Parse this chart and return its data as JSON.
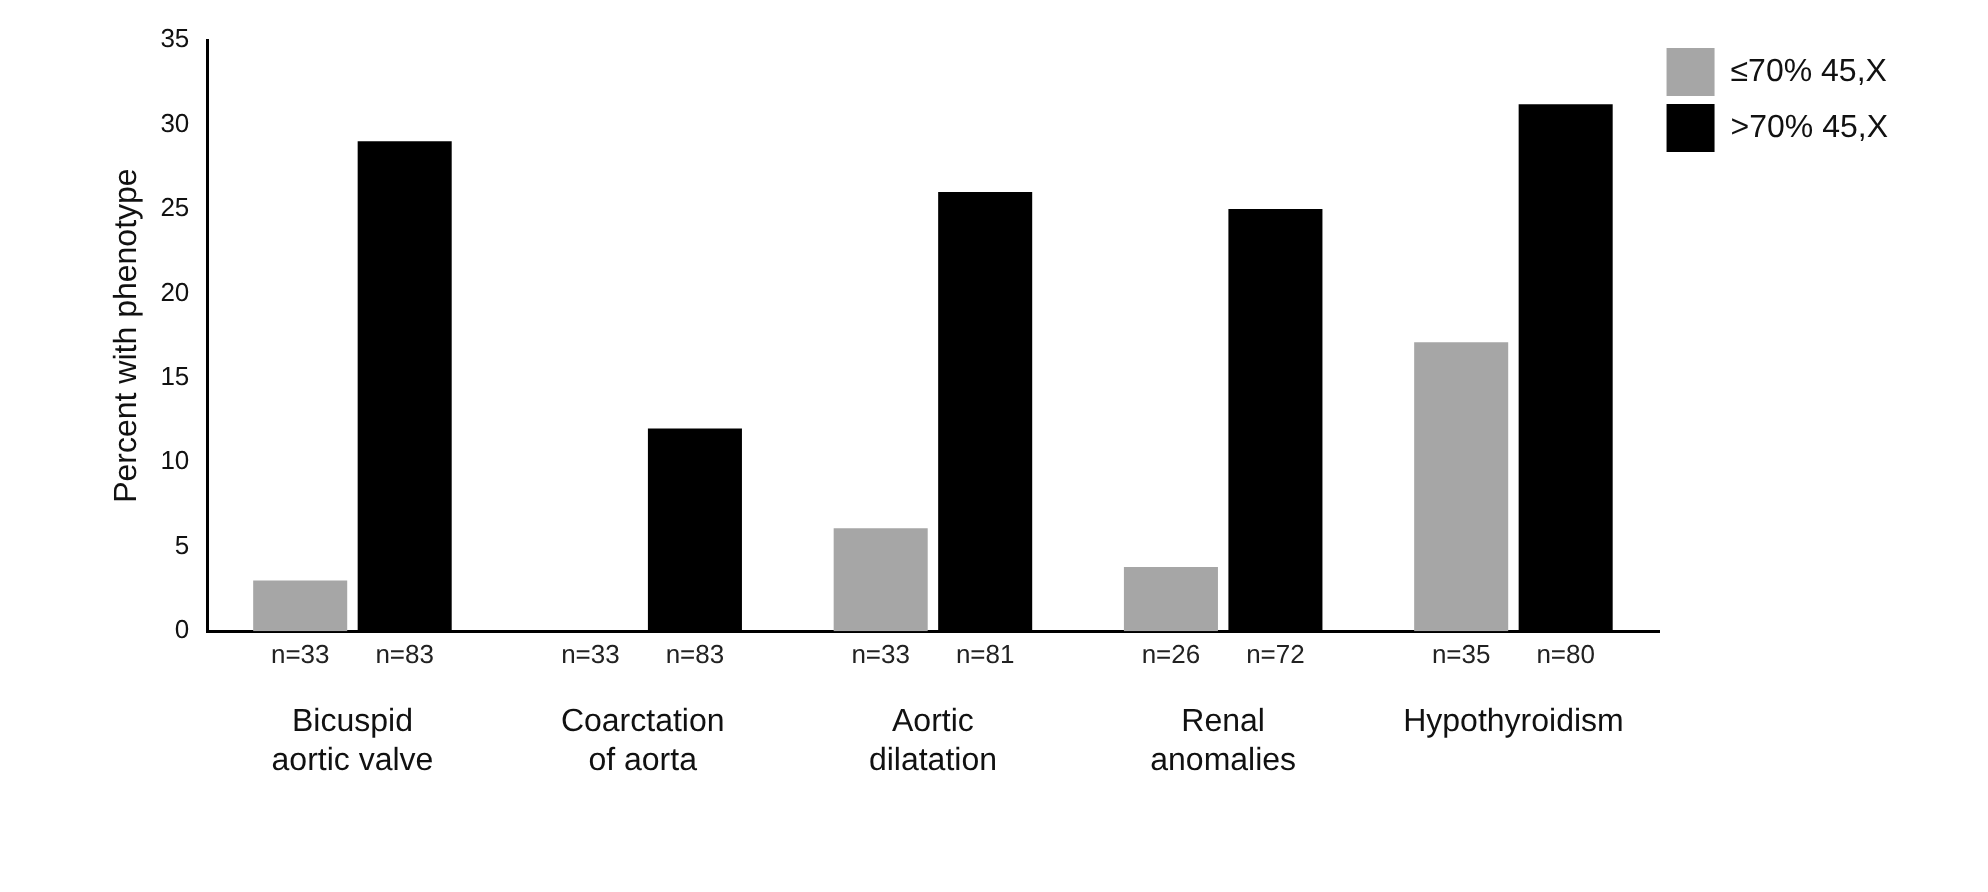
{
  "chart_data": {
    "type": "bar",
    "ylabel": "Percent with phenotype",
    "categories": [
      "Bicuspid aortic valve",
      "Coarctation of aorta",
      "Aortic dilatation",
      "Renal anomalies",
      "Hypothyroidism"
    ],
    "series": [
      {
        "name": "≤70% 45,X",
        "color": "#a6a6a6",
        "values": [
          3,
          0,
          6.1,
          3.8,
          17.1
        ]
      },
      {
        "name": ">70% 45,X",
        "color": "#000000",
        "values": [
          29,
          12,
          26,
          25,
          31.2
        ]
      }
    ],
    "ylim": [
      0,
      35
    ],
    "yticks": [
      0,
      5,
      10,
      15,
      20,
      25,
      30,
      35
    ],
    "grid": false,
    "legend": "top right",
    "annotations": [
      "n=33",
      "n=83",
      "n=33",
      "n=83",
      "n=33",
      "n=81",
      "n=26",
      "n=72",
      "n=35",
      "n=80"
    ]
  }
}
